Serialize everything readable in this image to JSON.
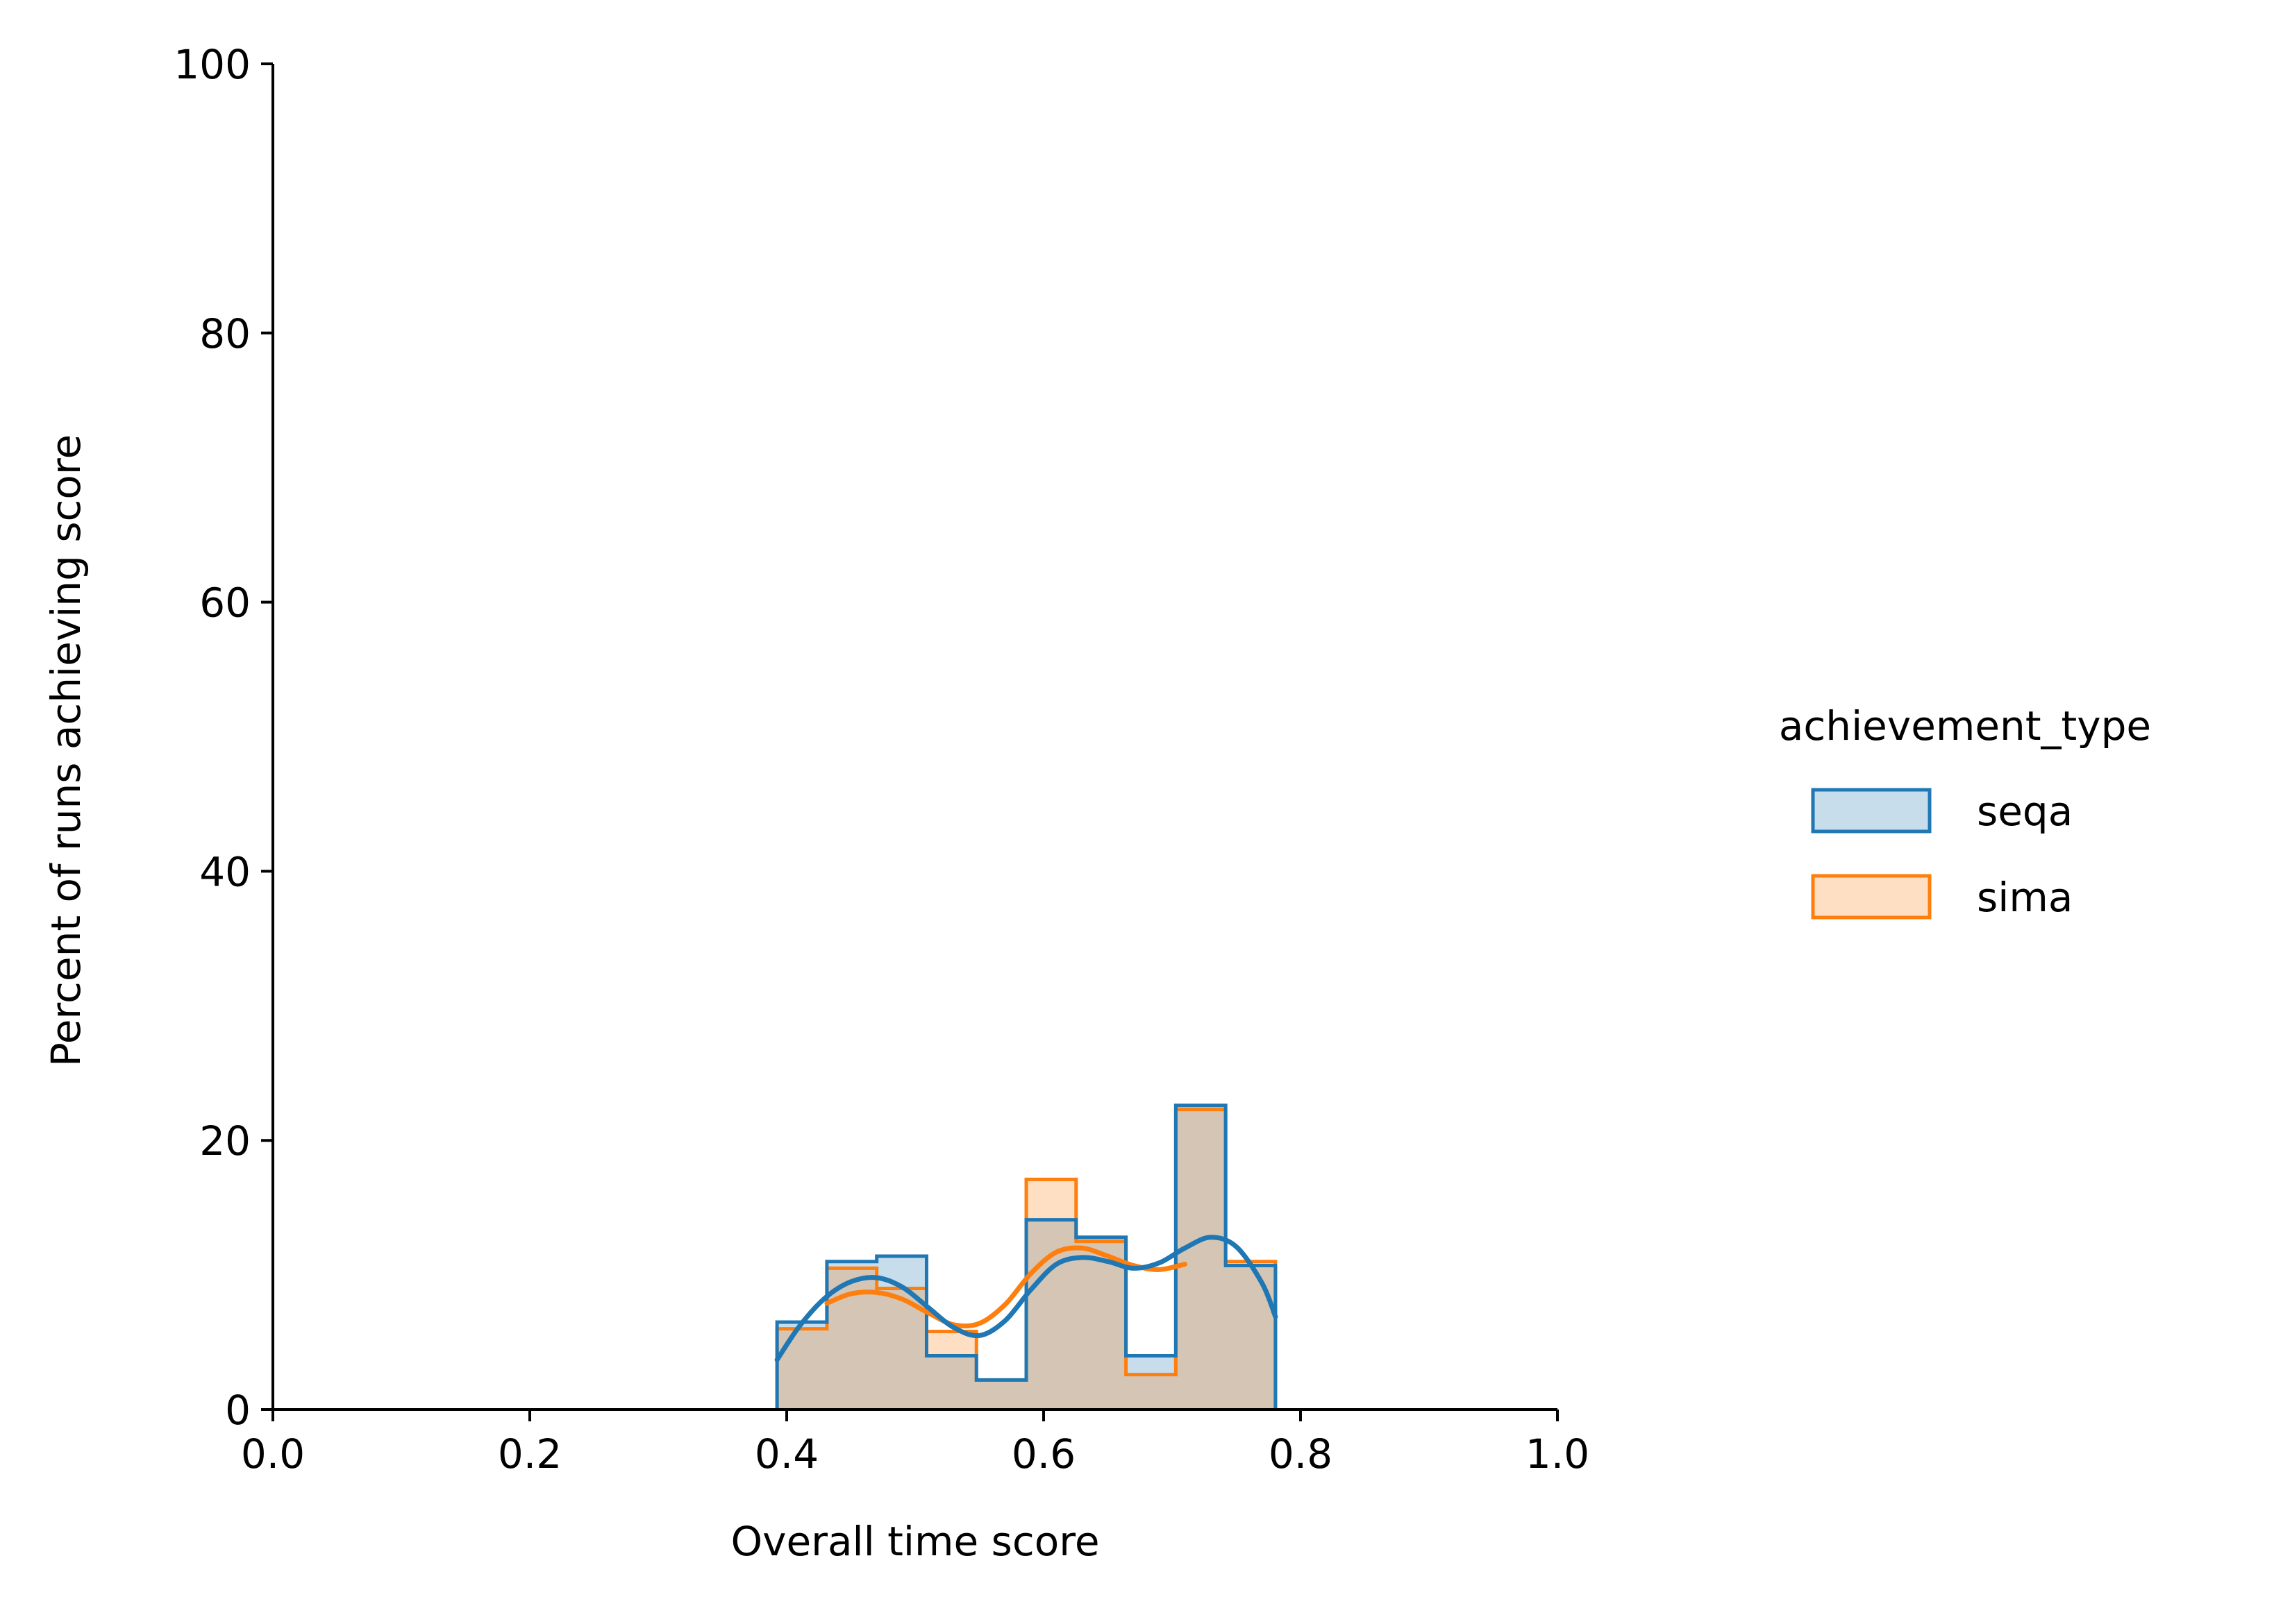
{
  "chart_data": {
    "type": "histogram",
    "xlabel": "Overall time score",
    "ylabel": "Percent of runs achieving score",
    "xlim": [
      0.0,
      1.0
    ],
    "ylim": [
      0,
      100
    ],
    "x_ticks": [
      "0.0",
      "0.2",
      "0.4",
      "0.6",
      "0.8",
      "1.0"
    ],
    "y_ticks": [
      "0",
      "20",
      "40",
      "60",
      "80",
      "100"
    ],
    "grid": false,
    "legend": {
      "title": "achievement_type",
      "placement": "right",
      "entries": [
        "seqa",
        "sima"
      ]
    },
    "bin_edges": [
      0.3925,
      0.4313,
      0.4701,
      0.5089,
      0.5477,
      0.5865,
      0.6253,
      0.6641,
      0.7029,
      0.7417,
      0.7805
    ],
    "series": [
      {
        "name": "seqa",
        "color": "#1f77b4",
        "values": [
          6.5,
          11.0,
          11.4,
          4.0,
          2.2,
          14.1,
          12.8,
          4.0,
          22.6,
          10.7
        ],
        "kde_x": [
          0.3925,
          0.41,
          0.43,
          0.45,
          0.47,
          0.49,
          0.51,
          0.53,
          0.55,
          0.57,
          0.59,
          0.61,
          0.63,
          0.65,
          0.67,
          0.69,
          0.71,
          0.73,
          0.75,
          0.77,
          0.7805
        ],
        "kde_y": [
          3.7,
          6.2,
          8.3,
          9.5,
          9.8,
          9.1,
          7.6,
          6.1,
          5.5,
          6.6,
          8.9,
          10.8,
          11.3,
          11.0,
          10.5,
          10.9,
          12.0,
          12.8,
          12.1,
          9.4,
          6.9
        ]
      },
      {
        "name": "sima",
        "color": "#ff7f0e",
        "values": [
          6.0,
          10.5,
          9.0,
          5.8,
          2.2,
          17.1,
          12.5,
          2.6,
          22.3,
          11.0
        ],
        "kde_x": [
          0.4313,
          0.45,
          0.47,
          0.49,
          0.51,
          0.53,
          0.55,
          0.57,
          0.59,
          0.61,
          0.63,
          0.65,
          0.67,
          0.69,
          0.71
        ],
        "kde_y": [
          7.9,
          8.6,
          8.7,
          8.2,
          7.2,
          6.3,
          6.4,
          7.8,
          10.1,
          11.7,
          12.0,
          11.4,
          10.7,
          10.4,
          10.8
        ]
      }
    ]
  }
}
